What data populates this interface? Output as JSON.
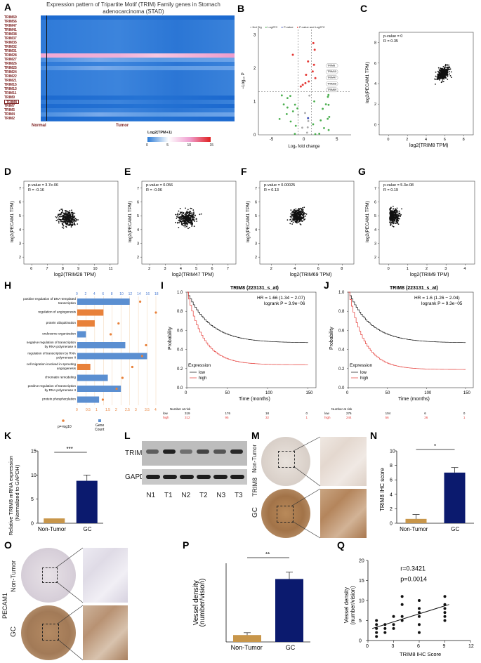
{
  "panel_labels": [
    "A",
    "B",
    "C",
    "D",
    "E",
    "F",
    "G",
    "H",
    "I",
    "J",
    "K",
    "L",
    "M",
    "N",
    "O",
    "P",
    "Q"
  ],
  "heatmap": {
    "title": "Expression pattern of Tripartite Motif (TRIM) Family genes in Stomach adenocarcinoma (STAD)",
    "genes": [
      "TRIM69",
      "TRIM56",
      "TRIM47",
      "TRIM41",
      "TRIM38",
      "TRIM37",
      "TRIM35",
      "TRIM32",
      "TRIM31",
      "TRIM28",
      "TRIM27",
      "TRIM26",
      "TRIM25",
      "TRIM24",
      "TRIM22",
      "TRIM21",
      "TRIM15",
      "TRIM13",
      "TRIM11",
      "TRIM9",
      "TRIM8",
      "TRIM7",
      "TRIM5",
      "TRIM4",
      "TRIM2"
    ],
    "highlight": "TRIM8",
    "group_normal": "Normal",
    "group_tumor": "Tumor",
    "legend_title": "Log2(TPM+1)",
    "legend_ticks": [
      "0",
      "5",
      "10",
      "15"
    ],
    "row_levels": [
      0.15,
      0.2,
      0.25,
      0.2,
      0.2,
      0.2,
      0.25,
      0.2,
      0.2,
      0.75,
      0.35,
      0.2,
      0.3,
      0.2,
      0.25,
      0.2,
      0.2,
      0.25,
      0.2,
      0.1,
      0.2,
      0.15,
      0.25,
      0.3,
      0.1
    ]
  },
  "volcano": {
    "legend": [
      "Not Sig",
      "Log2FC",
      "P-value",
      "P-value and Log2FC"
    ],
    "legend_colors": [
      "#aaaaaa",
      "#4caf50",
      "#3f51b5",
      "#e53935"
    ],
    "xlabel": "Log₂ fold change",
    "ylabel": "−Log₁₀ P",
    "xticks": [
      "-5",
      "0",
      "5"
    ],
    "yticks": [
      "0",
      "1",
      "2",
      "3"
    ],
    "callouts": [
      "TRIM8",
      "TRIM15",
      "TRIM47",
      "TRIM28",
      "TRIM69"
    ]
  },
  "scatters": [
    {
      "id": "C",
      "stats": [
        "p-value = 0",
        "R = 0.35"
      ],
      "xlabel": "log2(TRIM8 TPM)",
      "ylabel": "log2(PECAM1 TPM)",
      "xticks": [
        "0",
        "2",
        "4",
        "6",
        "8"
      ],
      "yticks": [
        "0",
        "2",
        "4",
        "6",
        "8"
      ]
    },
    {
      "id": "D",
      "stats": [
        "p-value = 3.7e-06",
        "R = -0.16"
      ],
      "xlabel": "log2(TRIM28 TPM)",
      "ylabel": "log2(PECAM1 TPM)",
      "xticks": [
        "6",
        "7",
        "8",
        "9",
        "10",
        "11"
      ],
      "yticks": [
        "2",
        "3",
        "4",
        "5",
        "6",
        "7"
      ]
    },
    {
      "id": "E",
      "stats": [
        "p-value = 0.056",
        "R = -0.06"
      ],
      "xlabel": "log2(TRIM47 TPM)",
      "ylabel": "log2(PECAM1 TPM)",
      "xticks": [
        "2",
        "3",
        "4",
        "5",
        "6",
        "7"
      ],
      "yticks": [
        "2",
        "3",
        "4",
        "5",
        "6",
        "7"
      ]
    },
    {
      "id": "F",
      "stats": [
        "p-value = 0.00025",
        "R = 0.13"
      ],
      "xlabel": "log2(TRIM69 TPM)",
      "ylabel": "log2(PECAM1 TPM)",
      "xticks": [
        "2",
        "4",
        "6",
        "8"
      ],
      "yticks": [
        "2",
        "3",
        "4",
        "5",
        "6",
        "7"
      ]
    },
    {
      "id": "G",
      "stats": [
        "p-value = 5.3e-08",
        "R = 0.19"
      ],
      "xlabel": "log2(TRIM9 TPM)",
      "ylabel": "log2(PECAM1 TPM)",
      "xticks": [
        "0",
        "1",
        "2",
        "3",
        "4"
      ],
      "yticks": [
        "2",
        "3",
        "4",
        "5",
        "6",
        "7"
      ]
    }
  ],
  "go": {
    "terms": [
      "positive regulation of DNA-templated transcription",
      "regulation of angiogenesis",
      "protein ubiquitination",
      "endosome organization",
      "negative regulation of transcription by RNA polymerase II",
      "regulation of transcription by RNA polymerase II",
      "cell migration involved in sprouting angiogenesis",
      "chromatin remodeling",
      "positive regulation of transcription by RNA polymerase II",
      "protein phosphorylation"
    ],
    "counts": [
      12,
      6,
      4,
      2,
      11,
      16,
      3,
      7,
      10,
      5
    ],
    "pvals": [
      3.2,
      4.0,
      2.1,
      1.7,
      3.5,
      3.3,
      2.8,
      2.3,
      2.0,
      1.3
    ],
    "bar_colors": [
      "#5b8fd1",
      "#e8813a",
      "#e8813a",
      "#5b8fd1",
      "#5b8fd1",
      "#5b8fd1",
      "#e8813a",
      "#5b8fd1",
      "#5b8fd1",
      "#5b8fd1"
    ],
    "top_ticks": [
      "0",
      "2",
      "4",
      "6",
      "8",
      "10",
      "12",
      "14",
      "16",
      "18"
    ],
    "bottom_ticks": [
      "0",
      "0.5",
      "1",
      "1.5",
      "2",
      "2.5",
      "3",
      "3.5",
      "4"
    ],
    "legend_p": "p=-log10",
    "legend_gene": "Gene Count"
  },
  "km": [
    {
      "id": "I",
      "title": "TRIM8 (223131_s_at)",
      "hr": "HR = 1.66 (1.34 − 2.07)",
      "logrank": "logrank P = 3.9e−06",
      "xlabel": "Time (months)",
      "ylabel": "Probability",
      "xticks": [
        "0",
        "50",
        "100",
        "150"
      ],
      "yticks": [
        "0.0",
        "0.2",
        "0.4",
        "0.6",
        "0.8",
        "1.0"
      ],
      "expr_title": "Expression",
      "low_label": "low",
      "high_label": "high",
      "risk_title": "Number at risk",
      "risk_low": [
        "319",
        "176",
        "18",
        "0"
      ],
      "risk_high": [
        "312",
        "95",
        "32",
        "1"
      ],
      "low_end": 0.47,
      "high_end": 0.24
    },
    {
      "id": "J",
      "title": "TRIM8 (223131_s_at)",
      "hr": "HR = 1.6 (1.26 − 2.04)",
      "logrank": "logrank P = 9.3e−05",
      "xlabel": "Time (months)",
      "ylabel": "Probability",
      "xticks": [
        "0",
        "50",
        "100",
        "150"
      ],
      "yticks": [
        "0.0",
        "0.2",
        "0.4",
        "0.6",
        "0.8",
        "1.0"
      ],
      "expr_title": "Expression",
      "low_label": "low",
      "high_label": "high",
      "risk_title": "Number at risk",
      "risk_low": [
        "276",
        "104",
        "6",
        "0"
      ],
      "risk_high": [
        "244",
        "56",
        "26",
        "1"
      ],
      "low_end": 0.47,
      "high_end": 0.19
    }
  ],
  "panelK": {
    "ylabel": "Relative TRIM8 mRNA expression\n(Normalized to GAPDH)",
    "categories": [
      "Non-Tumor",
      "GC"
    ],
    "values": [
      1,
      8.8
    ],
    "errors": [
      0,
      1.2
    ],
    "yticks": [
      "0",
      "5",
      "10",
      "15"
    ],
    "ymax": 15,
    "sig": "***",
    "colors": [
      "#c8964a",
      "#0b1a6e"
    ]
  },
  "panelL": {
    "bands": [
      "TRIM8",
      "GAPDH"
    ],
    "lanes": [
      "N1",
      "T1",
      "N2",
      "T2",
      "N3",
      "T3"
    ],
    "trim8_intensity": [
      0.55,
      0.9,
      0.45,
      0.7,
      0.6,
      0.85
    ]
  },
  "panelM": {
    "row_labels": [
      "Non-Tumor",
      "GC"
    ],
    "side_label": "TRIM8"
  },
  "panelN": {
    "ylabel": "TRIM8 IHC score",
    "categories": [
      "Non-Tumor",
      "GC"
    ],
    "values": [
      0.6,
      7
    ],
    "errors": [
      0.6,
      0.7
    ],
    "yticks": [
      "0",
      "2",
      "4",
      "6",
      "8",
      "10"
    ],
    "ymax": 10,
    "sig": "*",
    "colors": [
      "#c8964a",
      "#0b1a6e"
    ]
  },
  "panelO": {
    "row_labels": [
      "Non-Tumor",
      "GC"
    ],
    "side_label": "PECAM1"
  },
  "panelP": {
    "ylabel": "Vessel density\n(number/vision)",
    "categories": [
      "Non-Tumor",
      "GC"
    ],
    "values": [
      0.35,
      3.2
    ],
    "errors": [
      0.12,
      0.35
    ],
    "yticks": [],
    "ymax": 4,
    "sig": "**",
    "colors": [
      "#c8964a",
      "#0b1a6e"
    ]
  },
  "panelQ": {
    "stat_r": "r=0.3421",
    "stat_p": "p=0.0014",
    "xlabel": "TRIM8 IHC Score",
    "ylabel": "Vessel density\n(number/vision)",
    "xticks": [
      "0",
      "3",
      "6",
      "9",
      "12"
    ],
    "yticks": [
      "0",
      "5",
      "10",
      "15",
      "20"
    ],
    "x": [
      1,
      1,
      1,
      1,
      1,
      2,
      2,
      2,
      3,
      3,
      3,
      4,
      4,
      4,
      4,
      6,
      6,
      6,
      6,
      6,
      6,
      9,
      9,
      9,
      9,
      9,
      9
    ],
    "y": [
      1,
      2,
      3,
      4,
      5,
      2,
      3,
      4,
      3,
      4,
      6,
      5,
      6,
      9,
      11,
      2,
      4,
      6,
      7,
      8,
      10,
      5,
      6,
      7,
      8,
      9,
      11
    ],
    "fit": [
      [
        0.5,
        3
      ],
      [
        9.5,
        9
      ]
    ]
  }
}
